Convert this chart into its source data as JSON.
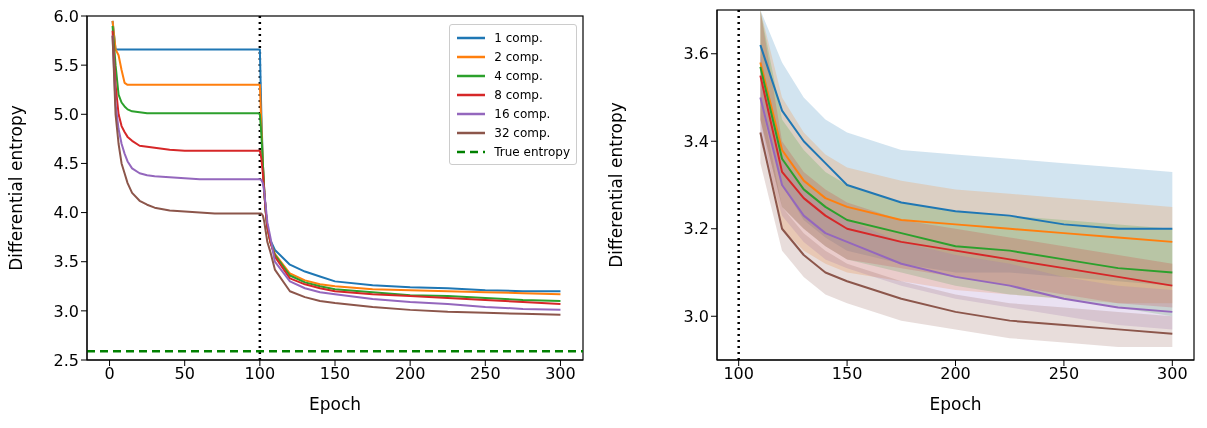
{
  "chart_data": [
    {
      "type": "line",
      "xlabel": "Epoch",
      "ylabel": "Differential entropy",
      "xlim": [
        -15,
        315
      ],
      "ylim": [
        2.5,
        6.0
      ],
      "xticks": [
        0,
        50,
        100,
        150,
        200,
        250,
        300
      ],
      "yticks": [
        {
          "value": 2.5,
          "label": "2.5"
        },
        {
          "value": 3,
          "label": "3.0"
        },
        {
          "value": 3.5,
          "label": "3.5"
        },
        {
          "value": 4,
          "label": "4.0"
        },
        {
          "value": 4.5,
          "label": "4.5"
        },
        {
          "value": 5,
          "label": "5.0"
        },
        {
          "value": 5.5,
          "label": "5.5"
        },
        {
          "value": 6,
          "label": "6.0"
        }
      ],
      "legend": "top right",
      "marker": "none",
      "x": [
        2,
        4,
        6,
        8,
        10,
        12,
        15,
        20,
        25,
        30,
        40,
        50,
        60,
        70,
        80,
        90,
        99,
        100,
        101,
        102,
        103,
        104,
        105,
        107,
        110,
        120,
        130,
        140,
        150,
        175,
        200,
        225,
        250,
        275,
        300
      ],
      "series": [
        {
          "name": "1 comp.",
          "color": "#1f77b4",
          "values": [
            5.95,
            5.66,
            5.66,
            5.66,
            5.66,
            5.66,
            5.66,
            5.66,
            5.66,
            5.66,
            5.66,
            5.66,
            5.66,
            5.66,
            5.66,
            5.66,
            5.66,
            5.66,
            5.0,
            4.5,
            4.2,
            4.0,
            3.85,
            3.72,
            3.62,
            3.47,
            3.4,
            3.35,
            3.3,
            3.26,
            3.24,
            3.23,
            3.21,
            3.2,
            3.2
          ]
        },
        {
          "name": "2 comp.",
          "color": "#ff7f0e",
          "values": [
            5.95,
            5.66,
            5.6,
            5.45,
            5.32,
            5.3,
            5.3,
            5.3,
            5.3,
            5.3,
            5.3,
            5.3,
            5.3,
            5.3,
            5.3,
            5.3,
            5.3,
            5.3,
            4.9,
            4.5,
            4.2,
            4.0,
            3.85,
            3.7,
            3.58,
            3.38,
            3.31,
            3.27,
            3.25,
            3.22,
            3.21,
            3.2,
            3.19,
            3.18,
            3.17
          ]
        },
        {
          "name": "4 comp.",
          "color": "#2ca02c",
          "values": [
            5.9,
            5.5,
            5.2,
            5.12,
            5.08,
            5.05,
            5.03,
            5.02,
            5.01,
            5.01,
            5.01,
            5.01,
            5.01,
            5.01,
            5.01,
            5.01,
            5.01,
            5.0,
            4.8,
            4.5,
            4.2,
            4.0,
            3.85,
            3.7,
            3.57,
            3.36,
            3.29,
            3.25,
            3.22,
            3.19,
            3.16,
            3.15,
            3.13,
            3.11,
            3.1
          ]
        },
        {
          "name": "8 comp.",
          "color": "#d62728",
          "values": [
            5.85,
            5.3,
            5.0,
            4.88,
            4.82,
            4.77,
            4.73,
            4.68,
            4.67,
            4.66,
            4.64,
            4.63,
            4.63,
            4.63,
            4.63,
            4.63,
            4.63,
            4.63,
            4.55,
            4.4,
            4.2,
            4.0,
            3.85,
            3.7,
            3.55,
            3.33,
            3.27,
            3.23,
            3.2,
            3.17,
            3.15,
            3.13,
            3.11,
            3.09,
            3.07
          ]
        },
        {
          "name": "16 comp.",
          "color": "#9467bd",
          "values": [
            5.8,
            5.1,
            4.85,
            4.7,
            4.6,
            4.52,
            4.45,
            4.4,
            4.38,
            4.37,
            4.36,
            4.35,
            4.34,
            4.34,
            4.34,
            4.34,
            4.34,
            4.34,
            4.33,
            4.3,
            4.2,
            4.05,
            3.9,
            3.75,
            3.5,
            3.3,
            3.23,
            3.19,
            3.17,
            3.12,
            3.09,
            3.07,
            3.04,
            3.02,
            3.01
          ]
        },
        {
          "name": "32 comp.",
          "color": "#8c564b",
          "values": [
            5.8,
            5.0,
            4.7,
            4.5,
            4.4,
            4.3,
            4.2,
            4.12,
            4.08,
            4.05,
            4.02,
            4.01,
            4.0,
            3.99,
            3.99,
            3.99,
            3.99,
            3.99,
            3.99,
            3.97,
            3.9,
            3.8,
            3.7,
            3.6,
            3.42,
            3.2,
            3.14,
            3.1,
            3.08,
            3.04,
            3.01,
            2.99,
            2.98,
            2.97,
            2.96
          ]
        }
      ],
      "ref_lines": [
        {
          "axis": "x",
          "value": 100,
          "color": "#000000",
          "line_style": "dotted"
        },
        {
          "axis": "y",
          "value": 2.59,
          "label": "True entropy",
          "color": "#008000",
          "line_style": "dashed"
        }
      ]
    },
    {
      "type": "line",
      "xlabel": "Epoch",
      "ylabel": "Differential entropy",
      "xlim": [
        90,
        310
      ],
      "ylim": [
        2.9,
        3.7
      ],
      "xticks": [
        100,
        150,
        200,
        250,
        300
      ],
      "yticks": [
        {
          "value": 3,
          "label": "3.0"
        },
        {
          "value": 3.2,
          "label": "3.2"
        },
        {
          "value": 3.4,
          "label": "3.4"
        },
        {
          "value": 3.6,
          "label": "3.6"
        }
      ],
      "marker": "none",
      "x": [
        110,
        120,
        130,
        140,
        150,
        175,
        200,
        225,
        250,
        275,
        300
      ],
      "series": [
        {
          "color": "#1f77b4",
          "values": [
            3.62,
            3.47,
            3.4,
            3.35,
            3.3,
            3.26,
            3.24,
            3.23,
            3.21,
            3.2,
            3.2
          ],
          "lower": [
            3.5,
            3.3,
            3.22,
            3.18,
            3.15,
            3.12,
            3.1,
            3.1,
            3.09,
            3.08,
            3.07
          ],
          "upper": [
            3.7,
            3.58,
            3.5,
            3.45,
            3.42,
            3.38,
            3.37,
            3.36,
            3.35,
            3.34,
            3.33
          ]
        },
        {
          "color": "#ff7f0e",
          "values": [
            3.58,
            3.38,
            3.31,
            3.27,
            3.25,
            3.22,
            3.21,
            3.2,
            3.19,
            3.18,
            3.17
          ],
          "lower": [
            3.45,
            3.2,
            3.15,
            3.12,
            3.1,
            3.08,
            3.06,
            3.05,
            3.04,
            3.03,
            3.03
          ],
          "upper": [
            3.7,
            3.5,
            3.42,
            3.37,
            3.34,
            3.31,
            3.29,
            3.28,
            3.27,
            3.26,
            3.25
          ]
        },
        {
          "color": "#2ca02c",
          "values": [
            3.57,
            3.36,
            3.29,
            3.25,
            3.22,
            3.19,
            3.16,
            3.15,
            3.13,
            3.11,
            3.1
          ],
          "lower": [
            3.45,
            3.25,
            3.2,
            3.16,
            3.13,
            3.1,
            3.07,
            3.05,
            3.04,
            3.02,
            3.0
          ],
          "upper": [
            3.7,
            3.45,
            3.38,
            3.33,
            3.3,
            3.26,
            3.24,
            3.23,
            3.22,
            3.21,
            3.2
          ]
        },
        {
          "color": "#d62728",
          "values": [
            3.55,
            3.33,
            3.27,
            3.23,
            3.2,
            3.17,
            3.15,
            3.13,
            3.11,
            3.09,
            3.07
          ],
          "lower": [
            3.45,
            3.25,
            3.2,
            3.16,
            3.13,
            3.11,
            3.09,
            3.07,
            3.05,
            3.03,
            3.02
          ],
          "upper": [
            3.7,
            3.4,
            3.33,
            3.29,
            3.26,
            3.22,
            3.2,
            3.18,
            3.16,
            3.14,
            3.12
          ]
        },
        {
          "color": "#9467bd",
          "values": [
            3.5,
            3.3,
            3.23,
            3.19,
            3.17,
            3.12,
            3.09,
            3.07,
            3.04,
            3.02,
            3.01
          ],
          "lower": [
            3.4,
            3.23,
            3.17,
            3.13,
            3.11,
            3.07,
            3.04,
            3.02,
            3.0,
            2.98,
            2.97
          ],
          "upper": [
            3.6,
            3.36,
            3.29,
            3.25,
            3.22,
            3.17,
            3.14,
            3.12,
            3.09,
            3.07,
            3.06
          ]
        },
        {
          "color": "#8c564b",
          "values": [
            3.42,
            3.2,
            3.14,
            3.1,
            3.08,
            3.04,
            3.01,
            2.99,
            2.98,
            2.97,
            2.96
          ],
          "lower": [
            3.35,
            3.15,
            3.09,
            3.05,
            3.03,
            2.99,
            2.97,
            2.95,
            2.94,
            2.93,
            2.93
          ],
          "upper": [
            3.5,
            3.25,
            3.19,
            3.15,
            3.12,
            3.08,
            3.05,
            3.03,
            3.02,
            3.01,
            3.0
          ]
        }
      ],
      "ref_lines": [
        {
          "axis": "x",
          "value": 100,
          "color": "#000000",
          "line_style": "dotted"
        }
      ]
    }
  ]
}
